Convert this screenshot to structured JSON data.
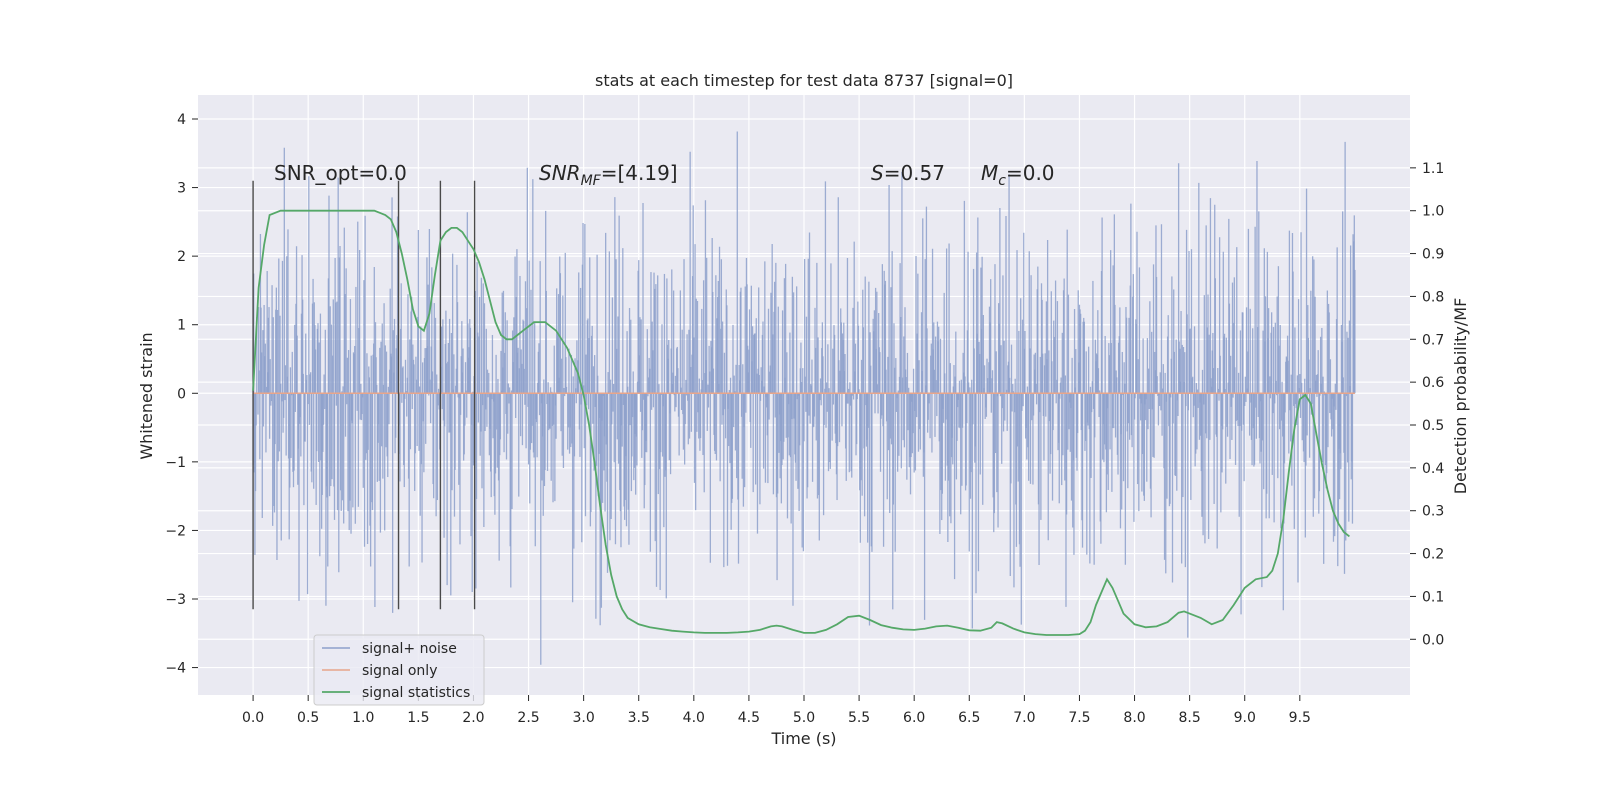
{
  "chart_data": {
    "type": "line",
    "title": "stats at each timestep for test data 8737 [signal=0]",
    "xlabel": "Time (s)",
    "ylabel": "Whitened strain",
    "y2label": "Detection probability/MF",
    "xlim": [
      -0.5,
      10.5
    ],
    "ylim": [
      -4.4,
      4.35
    ],
    "y2lim": [
      -0.13,
      1.27
    ],
    "grid": true,
    "legend_position": "lower-left",
    "x_ticks": [
      0.0,
      0.5,
      1.0,
      1.5,
      2.0,
      2.5,
      3.0,
      3.5,
      4.0,
      4.5,
      5.0,
      5.5,
      6.0,
      6.5,
      7.0,
      7.5,
      8.0,
      8.5,
      9.0,
      9.5
    ],
    "x_tick_labels": [
      "0.0",
      "0.5",
      "1.0",
      "1.5",
      "2.0",
      "2.5",
      "3.0",
      "3.5",
      "4.0",
      "4.5",
      "5.0",
      "5.5",
      "6.0",
      "6.5",
      "7.0",
      "7.5",
      "8.0",
      "8.5",
      "9.0",
      "9.5"
    ],
    "y_ticks": [
      -4,
      -3,
      -2,
      -1,
      0,
      1,
      2,
      3,
      4
    ],
    "y_tick_labels": [
      "−4",
      "−3",
      "−2",
      "−1",
      "0",
      "1",
      "2",
      "3",
      "4"
    ],
    "y2_ticks": [
      0.0,
      0.1,
      0.2,
      0.3,
      0.4,
      0.5,
      0.6,
      0.7,
      0.8,
      0.9,
      1.0,
      1.1
    ],
    "y2_tick_labels": [
      "0.0",
      "0.1",
      "0.2",
      "0.3",
      "0.4",
      "0.5",
      "0.6",
      "0.7",
      "0.8",
      "0.9",
      "1.0",
      "1.1"
    ],
    "annotations": {
      "snr_opt": "SNR_opt=0.0",
      "snr_mf_label": "SNR",
      "snr_mf_sub": "MF",
      "snr_mf_value": "=[4.19]",
      "s_label": "S",
      "s_value": "=0.57",
      "mc_label": "M",
      "mc_sub": "c",
      "mc_value": "=0.0"
    },
    "vertical_lines": {
      "x": [
        0.0,
        1.32,
        1.7,
        2.01
      ],
      "y_range": [
        -3.15,
        3.1
      ]
    },
    "series": [
      {
        "name": "signal+ noise",
        "color": "#8da0cb",
        "kind": "noise",
        "x_range": [
          0.0,
          10.0
        ],
        "typical_abs": 2.0,
        "peak_abs": 4.0
      },
      {
        "name": "signal only",
        "color": "#e8a58a",
        "kind": "flat",
        "x": [
          0.0,
          10.0
        ],
        "y": [
          0.0,
          0.0
        ]
      },
      {
        "name": "signal statistics",
        "color": "#55a868",
        "axis": "right",
        "x": [
          0.0,
          0.05,
          0.1,
          0.15,
          0.25,
          0.4,
          0.6,
          0.8,
          1.0,
          1.1,
          1.2,
          1.25,
          1.3,
          1.35,
          1.4,
          1.45,
          1.5,
          1.55,
          1.6,
          1.65,
          1.7,
          1.75,
          1.8,
          1.85,
          1.9,
          1.95,
          2.0,
          2.05,
          2.1,
          2.15,
          2.2,
          2.25,
          2.3,
          2.35,
          2.4,
          2.45,
          2.5,
          2.55,
          2.6,
          2.65,
          2.7,
          2.75,
          2.8,
          2.85,
          2.9,
          2.95,
          3.0,
          3.05,
          3.1,
          3.15,
          3.2,
          3.25,
          3.3,
          3.35,
          3.4,
          3.5,
          3.6,
          3.7,
          3.8,
          3.9,
          4.0,
          4.1,
          4.2,
          4.3,
          4.4,
          4.5,
          4.6,
          4.7,
          4.75,
          4.8,
          4.9,
          5.0,
          5.1,
          5.2,
          5.3,
          5.4,
          5.5,
          5.6,
          5.7,
          5.8,
          5.9,
          6.0,
          6.1,
          6.2,
          6.3,
          6.4,
          6.5,
          6.6,
          6.7,
          6.75,
          6.8,
          6.9,
          7.0,
          7.1,
          7.2,
          7.3,
          7.4,
          7.5,
          7.55,
          7.6,
          7.65,
          7.7,
          7.75,
          7.8,
          7.85,
          7.9,
          8.0,
          8.1,
          8.2,
          8.3,
          8.4,
          8.45,
          8.5,
          8.6,
          8.7,
          8.8,
          8.9,
          9.0,
          9.1,
          9.2,
          9.25,
          9.3,
          9.35,
          9.4,
          9.45,
          9.5,
          9.55,
          9.6,
          9.65,
          9.7,
          9.75,
          9.8,
          9.85,
          9.9,
          9.95
        ],
        "y": [
          0.58,
          0.82,
          0.92,
          0.99,
          1.0,
          1.0,
          1.0,
          1.0,
          1.0,
          1.0,
          0.99,
          0.98,
          0.95,
          0.9,
          0.84,
          0.77,
          0.73,
          0.72,
          0.76,
          0.85,
          0.93,
          0.95,
          0.96,
          0.96,
          0.95,
          0.93,
          0.91,
          0.88,
          0.84,
          0.79,
          0.74,
          0.71,
          0.7,
          0.7,
          0.71,
          0.72,
          0.73,
          0.74,
          0.74,
          0.74,
          0.73,
          0.72,
          0.7,
          0.68,
          0.65,
          0.62,
          0.57,
          0.5,
          0.41,
          0.31,
          0.22,
          0.15,
          0.1,
          0.07,
          0.05,
          0.035,
          0.028,
          0.024,
          0.02,
          0.018,
          0.016,
          0.015,
          0.015,
          0.015,
          0.016,
          0.018,
          0.022,
          0.03,
          0.032,
          0.03,
          0.022,
          0.015,
          0.015,
          0.022,
          0.035,
          0.052,
          0.055,
          0.045,
          0.033,
          0.027,
          0.023,
          0.022,
          0.025,
          0.03,
          0.032,
          0.027,
          0.021,
          0.02,
          0.027,
          0.04,
          0.037,
          0.025,
          0.016,
          0.012,
          0.01,
          0.01,
          0.01,
          0.012,
          0.02,
          0.04,
          0.08,
          0.11,
          0.14,
          0.12,
          0.09,
          0.06,
          0.035,
          0.028,
          0.03,
          0.04,
          0.062,
          0.065,
          0.06,
          0.05,
          0.035,
          0.045,
          0.08,
          0.12,
          0.14,
          0.145,
          0.16,
          0.2,
          0.28,
          0.39,
          0.49,
          0.56,
          0.57,
          0.55,
          0.48,
          0.41,
          0.35,
          0.3,
          0.27,
          0.25,
          0.24
        ]
      }
    ]
  }
}
